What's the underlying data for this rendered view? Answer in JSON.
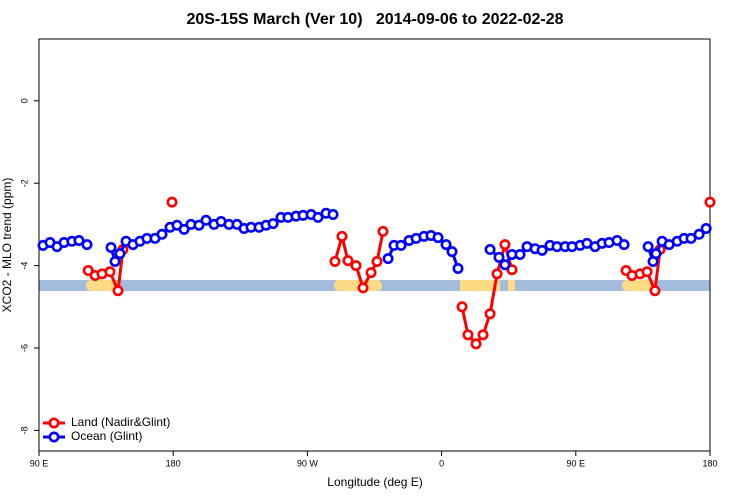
{
  "chart_data": {
    "type": "line",
    "title": "20S-15S March (Ver 10)   2014-09-06 to 2022-02-28",
    "xlabel": "Longitude (deg E)",
    "ylabel": "XCO2 - MLO trend (ppm)",
    "xlim": [
      90,
      540
    ],
    "ylim": [
      -8.5,
      1.5
    ],
    "xticks": [
      {
        "value": 90,
        "label": "90 E"
      },
      180,
      {
        "value": 270,
        "label": "90 W"
      },
      {
        "value": 360,
        "label": "0"
      },
      {
        "value": 450,
        "label": "90 E"
      },
      {
        "value": 540,
        "label": "180"
      }
    ],
    "yticks": [
      0,
      -2,
      -4,
      -6,
      -8
    ],
    "legend": "bottom-left",
    "series": [
      {
        "name": "Land (Nadir&Glint)",
        "color": "#ff0000",
        "x": [
          123,
          127.6,
          132.3,
          137.6,
          143.0,
          146.3,
          null,
          179.2,
          null,
          288.5,
          293.2,
          297.2,
          302.6,
          307.3,
          312.7,
          316.7,
          320.7,
          null,
          373.7,
          377.7,
          383.1,
          387.8,
          392.5,
          397.2,
          402.5,
          407.2,
          null,
          483.7,
          487.7,
          493.1,
          497.8,
          503.1,
          506.5,
          null,
          540
        ],
        "values": [
          -4.12,
          -4.24,
          -4.2,
          -4.15,
          -4.61,
          -3.61,
          null,
          -2.46,
          null,
          -3.9,
          -3.29,
          -3.88,
          -4.0,
          -4.54,
          -4.17,
          -3.9,
          -3.17,
          null,
          -5.0,
          -5.68,
          -5.9,
          -5.68,
          -5.17,
          -4.2,
          -3.49,
          -4.1,
          null,
          -4.12,
          -4.24,
          -4.2,
          -4.15,
          -4.61,
          -3.61,
          null,
          -2.46
        ]
      },
      {
        "name": "Ocean (Glint)",
        "color": "#0000ff",
        "x": [
          92.7,
          97.4,
          102.1,
          106.8,
          112.1,
          116.8,
          122.2,
          null,
          138.3,
          141.0,
          144.3,
          148.4,
          153.0,
          157.7,
          162.4,
          167.8,
          172.5,
          177.9,
          182.6,
          187.3,
          191.9,
          197.3,
          202.0,
          207.4,
          212.1,
          217.4,
          222.8,
          227.5,
          232.2,
          237.6,
          242.3,
          247.0,
          252.3,
          257.0,
          262.4,
          267.1,
          272.5,
          277.1,
          282.5,
          287.2,
          null,
          324.1,
          328.1,
          332.8,
          338.2,
          342.9,
          348.2,
          352.9,
          357.6,
          363.0,
          367.0,
          371.0,
          null,
          392.5,
          398.5,
          402.5,
          407.2,
          412.6,
          417.3,
          422.7,
          427.4,
          432.7,
          437.4,
          442.8,
          447.5,
          452.9,
          457.5,
          462.9,
          467.6,
          472.3,
          477.7,
          482.4,
          null,
          498.5,
          501.8,
          503.8,
          507.9,
          512.6,
          518.0,
          522.6,
          527.3,
          532.7,
          537.4
        ],
        "values": [
          -3.51,
          -3.44,
          -3.54,
          -3.44,
          -3.41,
          -3.39,
          -3.49,
          null,
          -3.56,
          -3.9,
          -3.71,
          -3.41,
          -3.49,
          -3.41,
          -3.34,
          -3.34,
          -3.24,
          -3.07,
          -3.02,
          -3.12,
          -3.0,
          -3.02,
          -2.9,
          -3.0,
          -2.93,
          -3.0,
          -3.0,
          -3.1,
          -3.07,
          -3.07,
          -3.02,
          -2.98,
          -2.83,
          -2.83,
          -2.8,
          -2.78,
          -2.76,
          -2.83,
          -2.73,
          -2.76,
          null,
          -3.83,
          -3.51,
          -3.51,
          -3.39,
          -3.34,
          -3.29,
          -3.27,
          -3.32,
          -3.49,
          -3.66,
          -4.07,
          null,
          -3.61,
          -3.8,
          -3.98,
          -3.73,
          -3.73,
          -3.54,
          -3.59,
          -3.63,
          -3.51,
          -3.54,
          -3.54,
          -3.54,
          -3.51,
          -3.46,
          -3.54,
          -3.46,
          -3.44,
          -3.39,
          -3.49,
          null,
          -3.54,
          -3.9,
          -3.71,
          -3.41,
          -3.49,
          -3.41,
          -3.34,
          -3.34,
          -3.24,
          -3.1
        ]
      }
    ]
  }
}
